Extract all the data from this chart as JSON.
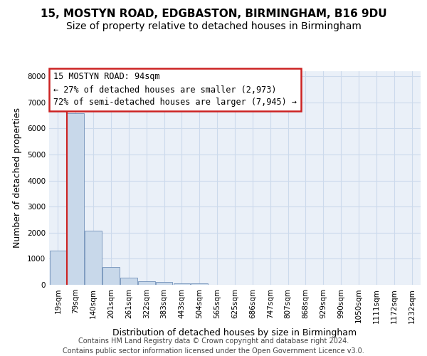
{
  "title1": "15, MOSTYN ROAD, EDGBASTON, BIRMINGHAM, B16 9DU",
  "title2": "Size of property relative to detached houses in Birmingham",
  "xlabel": "Distribution of detached houses by size in Birmingham",
  "ylabel": "Number of detached properties",
  "footer1": "Contains HM Land Registry data © Crown copyright and database right 2024.",
  "footer2": "Contains public sector information licensed under the Open Government Licence v3.0.",
  "annotation_title": "15 MOSTYN ROAD: 94sqm",
  "annotation_line1": "← 27% of detached houses are smaller (2,973)",
  "annotation_line2": "72% of semi-detached houses are larger (7,945) →",
  "categories": [
    "19sqm",
    "79sqm",
    "140sqm",
    "201sqm",
    "261sqm",
    "322sqm",
    "383sqm",
    "443sqm",
    "504sqm",
    "565sqm",
    "625sqm",
    "686sqm",
    "747sqm",
    "807sqm",
    "868sqm",
    "929sqm",
    "990sqm",
    "1050sqm",
    "1111sqm",
    "1172sqm",
    "1232sqm"
  ],
  "values": [
    1300,
    6600,
    2080,
    680,
    270,
    150,
    100,
    60,
    60,
    0,
    0,
    0,
    0,
    0,
    0,
    0,
    0,
    0,
    0,
    0,
    0
  ],
  "bar_color": "#c8d8ea",
  "bar_edge_color": "#7090b8",
  "vline_color": "#cc2222",
  "vline_x": 0.5,
  "ylim": [
    0,
    8200
  ],
  "yticks": [
    0,
    1000,
    2000,
    3000,
    4000,
    5000,
    6000,
    7000,
    8000
  ],
  "grid_color": "#ccdaec",
  "bg_color": "#eaf0f8",
  "annotation_box_bg": "#ffffff",
  "annotation_box_edge": "#cc2222",
  "title1_fontsize": 11,
  "title2_fontsize": 10,
  "xlabel_fontsize": 9,
  "ylabel_fontsize": 9,
  "tick_fontsize": 7.5,
  "annotation_fontsize": 8.5,
  "footer_fontsize": 7
}
